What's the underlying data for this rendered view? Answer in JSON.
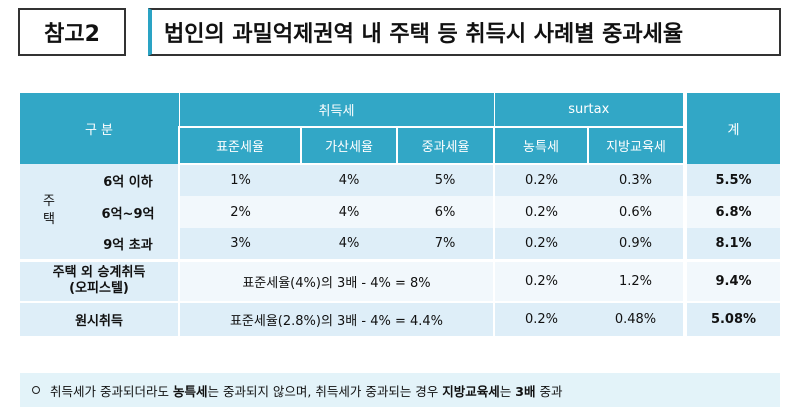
{
  "header": {
    "badge": "참고2",
    "title": "법인의 과밀억제권역 내 주택 등 취득시 사례별 중과세율"
  },
  "table": {
    "head": {
      "category": "구 분",
      "acquisition_tax": "취득세",
      "surtax": "surtax",
      "total": "계",
      "sub": {
        "standard": "표준세율",
        "additional": "가산세율",
        "heavy": "중과세율",
        "rural": "농특세",
        "education": "지방교육세"
      }
    },
    "housing_label": "주\n택",
    "housing_label_top": "주",
    "housing_label_bottom": "택",
    "rows": [
      {
        "label": "6억 이하",
        "standard": "1%",
        "additional": "4%",
        "heavy": "5%",
        "rural": "0.2%",
        "education": "0.3%",
        "total": "5.5%"
      },
      {
        "label": "6억~9억",
        "standard": "2%",
        "additional": "4%",
        "heavy": "6%",
        "rural": "0.2%",
        "education": "0.6%",
        "total": "6.8%"
      },
      {
        "label": "9억 초과",
        "standard": "3%",
        "additional": "4%",
        "heavy": "7%",
        "rural": "0.2%",
        "education": "0.9%",
        "total": "8.1%"
      }
    ],
    "non_housing": {
      "label_line1": "주택 외 승계취득",
      "label_line2": "(오피스텔)",
      "formula": "표준세율(4%)의 3배 - 4% = 8%",
      "rural": "0.2%",
      "education": "1.2%",
      "total": "9.4%"
    },
    "original": {
      "label": "원시취득",
      "formula": "표준세율(2.8%)의 3배 - 4% = 4.4%",
      "rural": "0.2%",
      "education": "0.48%",
      "total": "5.08%"
    }
  },
  "footnote": {
    "part1": "취득세가 중과되더라도 ",
    "bold1": "농특세",
    "part2": "는 중과되지 않으며, 취득세가 중과되는 경우 ",
    "bold2": "지방교육세",
    "part3": "는 ",
    "bold3": "3배",
    "part4": " 중과"
  },
  "colors": {
    "header_bg": "#32a7c6",
    "row_light": "#deeef8",
    "row_lighter": "#f2f8fc",
    "footnote_bg": "#e3f3f9",
    "accent_bar": "#2aa3c4"
  }
}
